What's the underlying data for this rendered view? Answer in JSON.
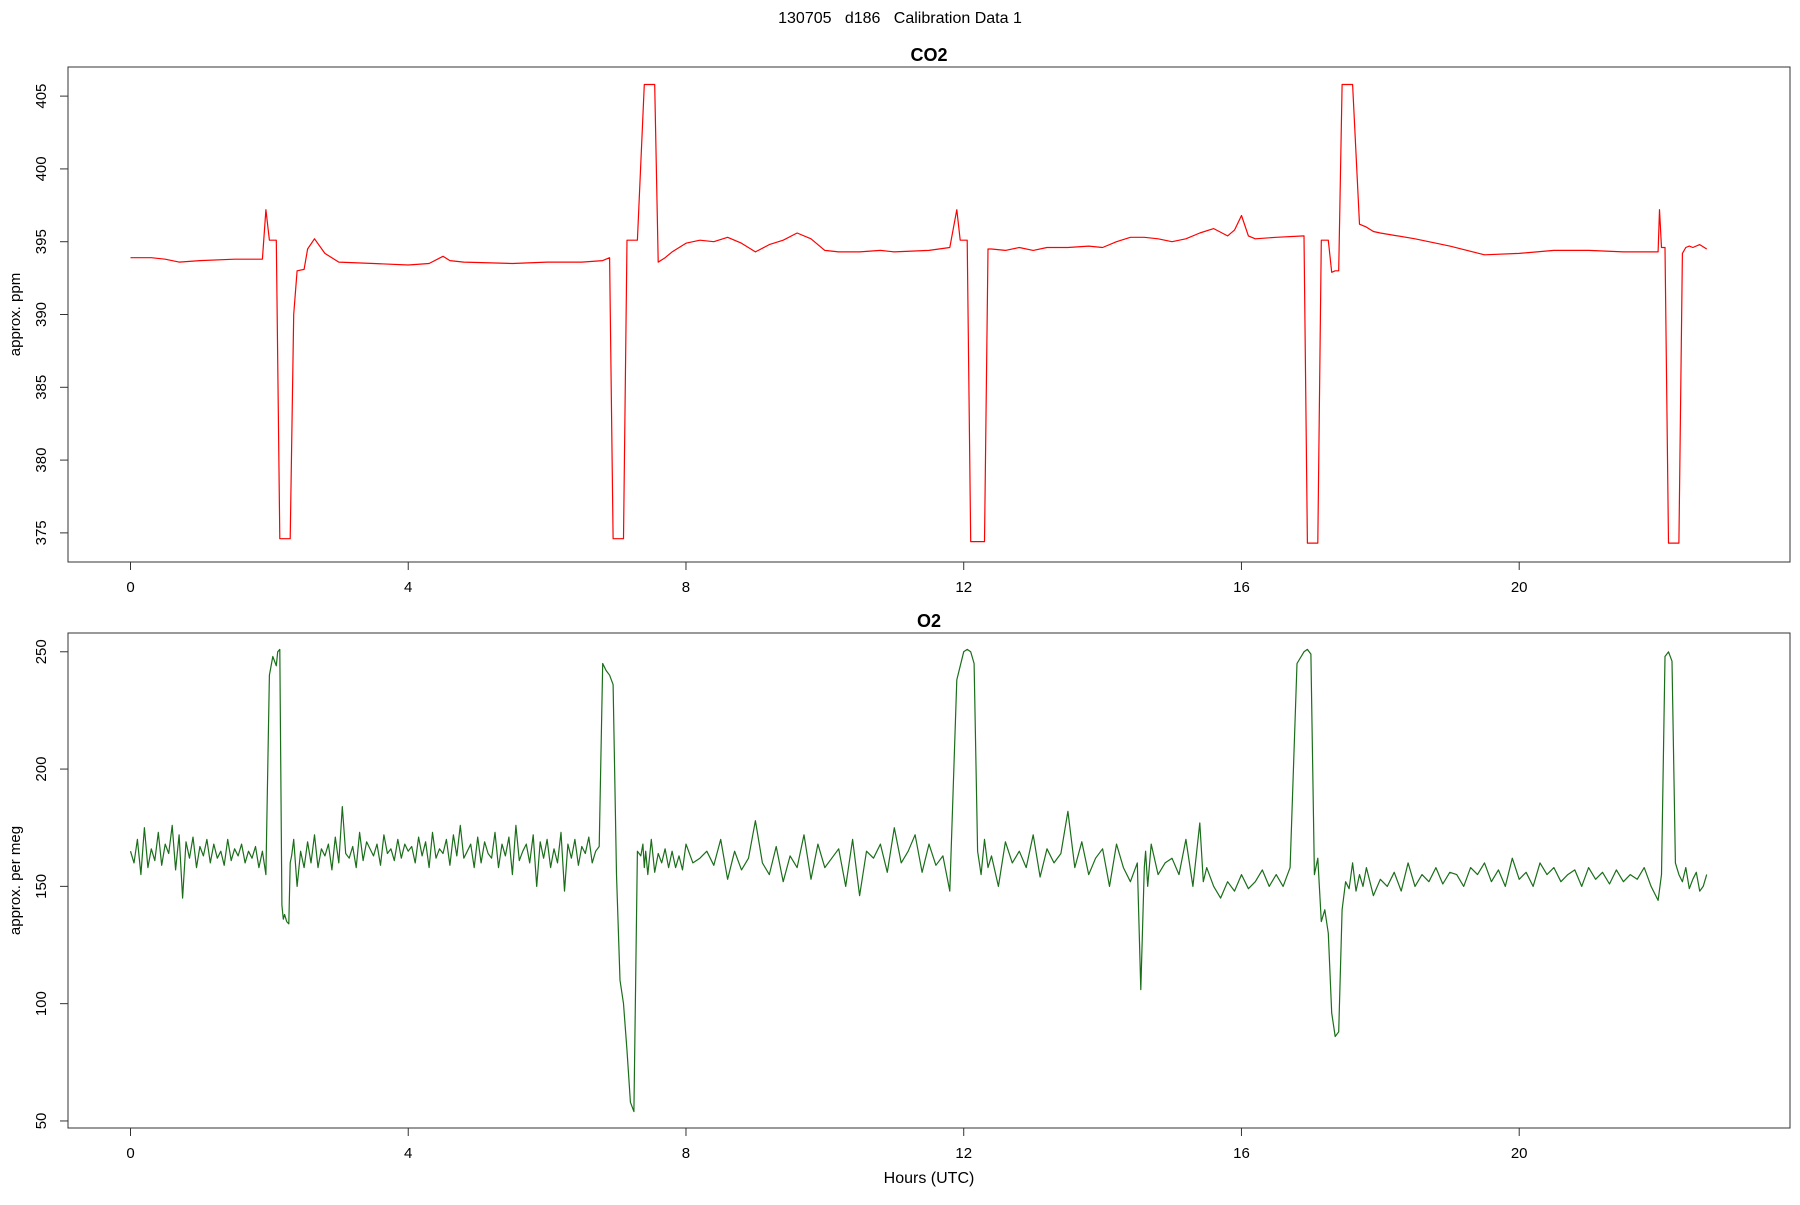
{
  "figure": {
    "title": "130705   d186   Calibration Data 1"
  },
  "chart_data": [
    {
      "type": "line",
      "title": "CO2",
      "xlabel": "",
      "ylabel": "approx. ppm",
      "xlim": [
        -0.9,
        23.9
      ],
      "ylim": [
        373,
        407
      ],
      "xticks": [
        0,
        4,
        8,
        12,
        16,
        20
      ],
      "yticks": [
        375,
        380,
        385,
        390,
        395,
        400,
        405
      ],
      "grid": false,
      "color": "#ff0000",
      "series": [
        {
          "x": [
            0.0,
            0.3,
            0.5,
            0.7,
            1.0,
            1.5,
            1.9,
            1.95,
            2.0,
            2.05,
            2.1,
            2.15,
            2.2,
            2.3,
            2.35,
            2.4,
            2.5,
            2.55,
            2.65,
            2.8,
            3.0,
            3.5,
            4.0,
            4.3,
            4.5,
            4.6,
            4.8,
            5.5,
            6.0,
            6.5,
            6.8,
            6.9,
            6.95,
            7.0,
            7.1,
            7.15,
            7.2,
            7.3,
            7.4,
            7.45,
            7.5,
            7.55,
            7.6,
            7.7,
            7.8,
            8.0,
            8.2,
            8.4,
            8.6,
            8.8,
            9.0,
            9.2,
            9.4,
            9.6,
            9.8,
            10.0,
            10.2,
            10.5,
            10.8,
            11.0,
            11.5,
            11.8,
            11.9,
            11.95,
            12.0,
            12.05,
            12.1,
            12.15,
            12.2,
            12.3,
            12.35,
            12.4,
            12.6,
            12.8,
            13.0,
            13.2,
            13.5,
            13.8,
            14.0,
            14.2,
            14.4,
            14.6,
            14.8,
            15.0,
            15.2,
            15.4,
            15.6,
            15.8,
            15.9,
            16.0,
            16.1,
            16.2,
            16.5,
            16.9,
            16.95,
            17.0,
            17.05,
            17.1,
            17.15,
            17.2,
            17.25,
            17.3,
            17.35,
            17.4,
            17.45,
            17.5,
            17.55,
            17.6,
            17.7,
            17.8,
            17.9,
            18.0,
            18.5,
            19.0,
            19.5,
            20.0,
            20.5,
            21.0,
            21.5,
            22.0,
            22.02,
            22.05,
            22.1,
            22.15,
            22.2,
            22.25,
            22.3,
            22.35,
            22.4,
            22.45,
            22.5,
            22.6,
            22.7
          ],
          "y": [
            393.9,
            393.9,
            393.8,
            393.6,
            393.7,
            393.8,
            393.8,
            397.2,
            395.1,
            395.1,
            395.1,
            374.6,
            374.6,
            374.6,
            390.0,
            393.0,
            393.1,
            394.5,
            395.2,
            394.2,
            393.6,
            393.5,
            393.4,
            393.5,
            394.0,
            393.7,
            393.6,
            393.5,
            393.6,
            393.6,
            393.7,
            393.9,
            374.6,
            374.6,
            374.6,
            395.1,
            395.1,
            395.1,
            405.8,
            405.8,
            405.8,
            405.8,
            393.6,
            393.9,
            394.3,
            394.9,
            395.1,
            395.0,
            395.3,
            394.9,
            394.3,
            394.8,
            395.1,
            395.6,
            395.2,
            394.4,
            394.3,
            394.3,
            394.4,
            394.3,
            394.4,
            394.6,
            397.2,
            395.1,
            395.1,
            395.1,
            374.4,
            374.4,
            374.4,
            374.4,
            394.5,
            394.5,
            394.4,
            394.6,
            394.4,
            394.6,
            394.6,
            394.7,
            394.6,
            395.0,
            395.3,
            395.3,
            395.2,
            395.0,
            395.2,
            395.6,
            395.9,
            395.4,
            395.8,
            396.8,
            395.4,
            395.2,
            395.3,
            395.4,
            374.3,
            374.3,
            374.3,
            374.3,
            395.1,
            395.1,
            395.1,
            392.9,
            393.0,
            393.0,
            405.8,
            405.8,
            405.8,
            405.8,
            396.2,
            396.0,
            395.7,
            395.6,
            395.2,
            394.7,
            394.1,
            394.2,
            394.4,
            394.4,
            394.3,
            394.3,
            397.2,
            394.6,
            394.6,
            374.3,
            374.3,
            374.3,
            374.3,
            394.2,
            394.6,
            394.7,
            394.6,
            394.8,
            394.5
          ]
        }
      ]
    },
    {
      "type": "line",
      "title": "O2",
      "xlabel": "Hours (UTC)",
      "ylabel": "approx. per meg",
      "xlim": [
        -0.9,
        23.9
      ],
      "ylim": [
        47,
        258
      ],
      "xticks": [
        0,
        4,
        8,
        12,
        16,
        20
      ],
      "yticks": [
        50,
        100,
        150,
        200,
        250
      ],
      "grid": false,
      "color": "#1a6e1a",
      "series": [
        {
          "x": [
            0.0,
            0.05,
            0.1,
            0.15,
            0.2,
            0.25,
            0.3,
            0.35,
            0.4,
            0.45,
            0.5,
            0.55,
            0.6,
            0.65,
            0.7,
            0.75,
            0.8,
            0.85,
            0.9,
            0.95,
            1.0,
            1.05,
            1.1,
            1.15,
            1.2,
            1.25,
            1.3,
            1.35,
            1.4,
            1.45,
            1.5,
            1.55,
            1.6,
            1.65,
            1.7,
            1.75,
            1.8,
            1.85,
            1.9,
            1.95,
            2.0,
            2.05,
            2.1,
            2.12,
            2.15,
            2.18,
            2.2,
            2.22,
            2.25,
            2.28,
            2.3,
            2.32,
            2.35,
            2.4,
            2.45,
            2.5,
            2.55,
            2.6,
            2.65,
            2.7,
            2.75,
            2.8,
            2.85,
            2.9,
            2.95,
            3.0,
            3.05,
            3.1,
            3.15,
            3.2,
            3.25,
            3.3,
            3.35,
            3.4,
            3.45,
            3.5,
            3.55,
            3.6,
            3.65,
            3.7,
            3.75,
            3.8,
            3.85,
            3.9,
            3.95,
            4.0,
            4.05,
            4.1,
            4.15,
            4.2,
            4.25,
            4.3,
            4.35,
            4.4,
            4.45,
            4.5,
            4.55,
            4.6,
            4.65,
            4.7,
            4.75,
            4.8,
            4.85,
            4.9,
            4.95,
            5.0,
            5.05,
            5.1,
            5.15,
            5.2,
            5.25,
            5.3,
            5.35,
            5.4,
            5.45,
            5.5,
            5.55,
            5.6,
            5.65,
            5.7,
            5.75,
            5.8,
            5.85,
            5.9,
            5.95,
            6.0,
            6.05,
            6.1,
            6.15,
            6.2,
            6.25,
            6.3,
            6.35,
            6.4,
            6.45,
            6.5,
            6.55,
            6.6,
            6.65,
            6.7,
            6.75,
            6.8,
            6.85,
            6.9,
            6.95,
            7.0,
            7.05,
            7.1,
            7.15,
            7.2,
            7.25,
            7.3,
            7.35,
            7.38,
            7.4,
            7.42,
            7.45,
            7.5,
            7.55,
            7.6,
            7.65,
            7.7,
            7.75,
            7.8,
            7.85,
            7.9,
            7.95,
            8.0,
            8.1,
            8.2,
            8.3,
            8.4,
            8.5,
            8.6,
            8.7,
            8.8,
            8.9,
            9.0,
            9.1,
            9.2,
            9.3,
            9.4,
            9.5,
            9.6,
            9.7,
            9.8,
            9.9,
            10.0,
            10.1,
            10.2,
            10.3,
            10.4,
            10.5,
            10.6,
            10.7,
            10.8,
            10.9,
            11.0,
            11.1,
            11.2,
            11.3,
            11.4,
            11.5,
            11.6,
            11.7,
            11.8,
            11.9,
            12.0,
            12.05,
            12.1,
            12.15,
            12.2,
            12.25,
            12.3,
            12.35,
            12.4,
            12.5,
            12.6,
            12.7,
            12.8,
            12.9,
            13.0,
            13.1,
            13.2,
            13.3,
            13.4,
            13.5,
            13.6,
            13.7,
            13.8,
            13.9,
            14.0,
            14.1,
            14.2,
            14.3,
            14.4,
            14.5,
            14.55,
            14.6,
            14.62,
            14.65,
            14.7,
            14.8,
            14.9,
            15.0,
            15.1,
            15.2,
            15.3,
            15.4,
            15.45,
            15.5,
            15.6,
            15.7,
            15.8,
            15.9,
            16.0,
            16.1,
            16.2,
            16.3,
            16.4,
            16.5,
            16.6,
            16.7,
            16.8,
            16.9,
            16.95,
            17.0,
            17.05,
            17.1,
            17.15,
            17.2,
            17.25,
            17.3,
            17.35,
            17.4,
            17.45,
            17.5,
            17.55,
            17.6,
            17.65,
            17.7,
            17.75,
            17.8,
            17.9,
            18.0,
            18.1,
            18.2,
            18.3,
            18.4,
            18.5,
            18.6,
            18.7,
            18.8,
            18.9,
            19.0,
            19.1,
            19.2,
            19.3,
            19.4,
            19.5,
            19.6,
            19.7,
            19.8,
            19.9,
            20.0,
            20.1,
            20.2,
            20.3,
            20.4,
            20.5,
            20.6,
            20.7,
            20.8,
            20.9,
            21.0,
            21.1,
            21.2,
            21.3,
            21.4,
            21.5,
            21.6,
            21.7,
            21.8,
            21.9,
            22.0,
            22.05,
            22.1,
            22.15,
            22.2,
            22.25,
            22.3,
            22.35,
            22.4,
            22.45,
            22.5,
            22.55,
            22.6,
            22.65,
            22.7
          ],
          "y": [
            165,
            160,
            170,
            155,
            175,
            158,
            166,
            161,
            173,
            159,
            168,
            164,
            176,
            157,
            172,
            145,
            169,
            162,
            171,
            158,
            167,
            163,
            170,
            160,
            168,
            162,
            165,
            159,
            170,
            161,
            166,
            163,
            168,
            160,
            165,
            162,
            167,
            158,
            165,
            155,
            240,
            248,
            244,
            250,
            251,
            142,
            136,
            138,
            135,
            134,
            160,
            163,
            170,
            150,
            165,
            158,
            169,
            160,
            172,
            158,
            166,
            163,
            168,
            157,
            171,
            160,
            184,
            164,
            162,
            167,
            158,
            173,
            161,
            169,
            166,
            163,
            168,
            159,
            172,
            164,
            166,
            161,
            170,
            162,
            168,
            165,
            167,
            160,
            171,
            163,
            169,
            158,
            173,
            162,
            166,
            164,
            170,
            159,
            172,
            163,
            176,
            162,
            165,
            168,
            158,
            171,
            160,
            169,
            164,
            162,
            173,
            158,
            168,
            163,
            171,
            155,
            176,
            161,
            165,
            168,
            160,
            172,
            150,
            169,
            162,
            170,
            158,
            166,
            160,
            173,
            148,
            168,
            162,
            170,
            159,
            167,
            164,
            171,
            160,
            165,
            167,
            245,
            242,
            240,
            236,
            155,
            110,
            100,
            80,
            58,
            54,
            165,
            163,
            168,
            158,
            165,
            155,
            170,
            156,
            164,
            160,
            166,
            158,
            165,
            158,
            163,
            157,
            168,
            160,
            162,
            165,
            159,
            170,
            153,
            165,
            157,
            162,
            178,
            160,
            155,
            167,
            152,
            163,
            158,
            172,
            153,
            168,
            158,
            162,
            166,
            150,
            170,
            146,
            165,
            162,
            168,
            156,
            175,
            160,
            165,
            172,
            156,
            168,
            159,
            163,
            148,
            238,
            250,
            251,
            250,
            245,
            165,
            155,
            170,
            158,
            163,
            150,
            169,
            160,
            165,
            158,
            172,
            154,
            166,
            160,
            164,
            182,
            158,
            169,
            155,
            162,
            166,
            150,
            168,
            158,
            152,
            160,
            106,
            158,
            165,
            150,
            168,
            155,
            160,
            162,
            155,
            170,
            150,
            177,
            152,
            158,
            150,
            145,
            152,
            148,
            155,
            149,
            152,
            157,
            150,
            155,
            150,
            158,
            245,
            250,
            251,
            249,
            155,
            162,
            135,
            140,
            130,
            96,
            86,
            88,
            140,
            152,
            149,
            160,
            148,
            155,
            150,
            158,
            146,
            153,
            150,
            156,
            148,
            160,
            150,
            155,
            152,
            158,
            151,
            156,
            155,
            150,
            158,
            155,
            160,
            152,
            157,
            150,
            162,
            153,
            156,
            150,
            160,
            155,
            158,
            152,
            155,
            157,
            150,
            158,
            153,
            156,
            151,
            157,
            152,
            155,
            153,
            158,
            150,
            144,
            155,
            248,
            250,
            246,
            160,
            155,
            152,
            158,
            149,
            153,
            156,
            148,
            150,
            155
          ]
        }
      ]
    }
  ]
}
